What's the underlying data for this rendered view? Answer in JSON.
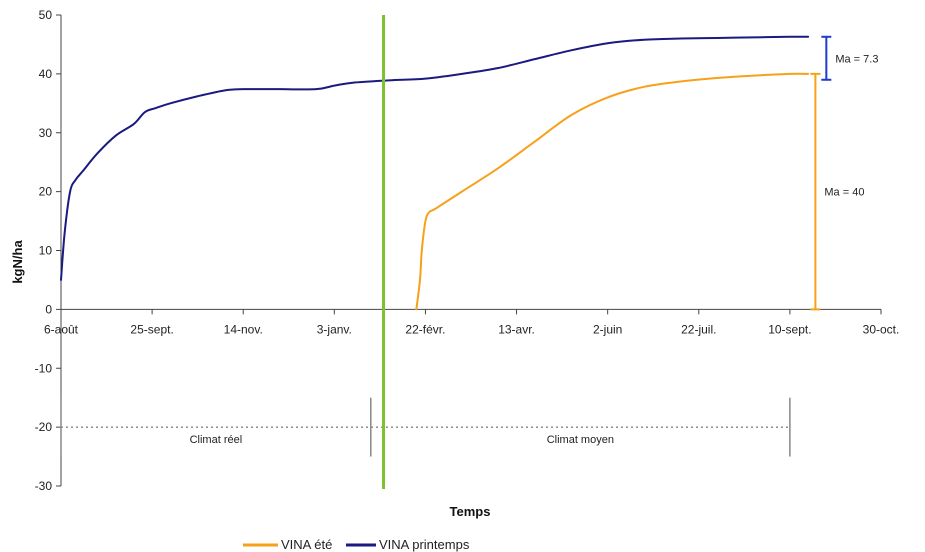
{
  "chart_data": {
    "type": "line",
    "title": "",
    "xlabel": "Temps",
    "ylabel": "kgN/ha",
    "ylim": [
      -30,
      50
    ],
    "yticks": [
      -30,
      -20,
      -10,
      0,
      10,
      20,
      30,
      40,
      50
    ],
    "x_tick_labels": [
      "6-août",
      "25-sept.",
      "14-nov.",
      "3-janv.",
      "22-févr.",
      "13-avr.",
      "2-juin",
      "22-juil.",
      "10-sept.",
      "30-oct."
    ],
    "x_tick_days": [
      0,
      50,
      100,
      150,
      200,
      250,
      300,
      350,
      400,
      450
    ],
    "xlim_days": [
      0,
      450
    ],
    "series": [
      {
        "name": "VINA été",
        "color": "#F7A11A",
        "x_days": [
          195,
          197,
          198,
          200,
          202,
          205,
          210,
          220,
          240,
          260,
          280,
          300,
          320,
          340,
          360,
          380,
          400,
          410
        ],
        "y": [
          0,
          5,
          10,
          15,
          16.5,
          17,
          18,
          20,
          24,
          28.5,
          33,
          36,
          37.8,
          38.7,
          39.3,
          39.7,
          40,
          40
        ]
      },
      {
        "name": "VINA printemps",
        "color": "#1A1A80",
        "x_days": [
          0,
          2,
          5,
          8,
          12,
          20,
          30,
          40,
          46,
          52,
          60,
          75,
          90,
          100,
          120,
          140,
          150,
          160,
          180,
          200,
          220,
          240,
          260,
          280,
          300,
          320,
          340,
          360,
          380,
          400,
          410
        ],
        "y": [
          5,
          13,
          20,
          22,
          23.5,
          26.5,
          29.5,
          31.5,
          33.5,
          34.2,
          35,
          36.2,
          37.2,
          37.4,
          37.4,
          37.4,
          38,
          38.5,
          38.9,
          39.2,
          40,
          41,
          42.5,
          44,
          45.2,
          45.8,
          46,
          46.1,
          46.2,
          46.3,
          46.3
        ]
      }
    ],
    "divider": {
      "x_day": 177,
      "color": "#7DC12F"
    },
    "reference_line": {
      "y": -20,
      "style": "dotted"
    },
    "period_markers_days": [
      0,
      170,
      400
    ],
    "periods": [
      {
        "label": "Climat réel",
        "from_day": 0,
        "to_day": 170
      },
      {
        "label": "Climat moyen",
        "from_day": 170,
        "to_day": 400
      }
    ],
    "errorbars": [
      {
        "label": "Ma = 7.3",
        "from": 39,
        "to": 46.3,
        "color": "#1A3CD0",
        "x_day": 420
      },
      {
        "label": "Ma = 40",
        "from": 0,
        "to": 40,
        "color": "#F7A11A",
        "x_day": 414
      }
    ],
    "legend": {
      "position": "bottom"
    },
    "grid": false
  }
}
